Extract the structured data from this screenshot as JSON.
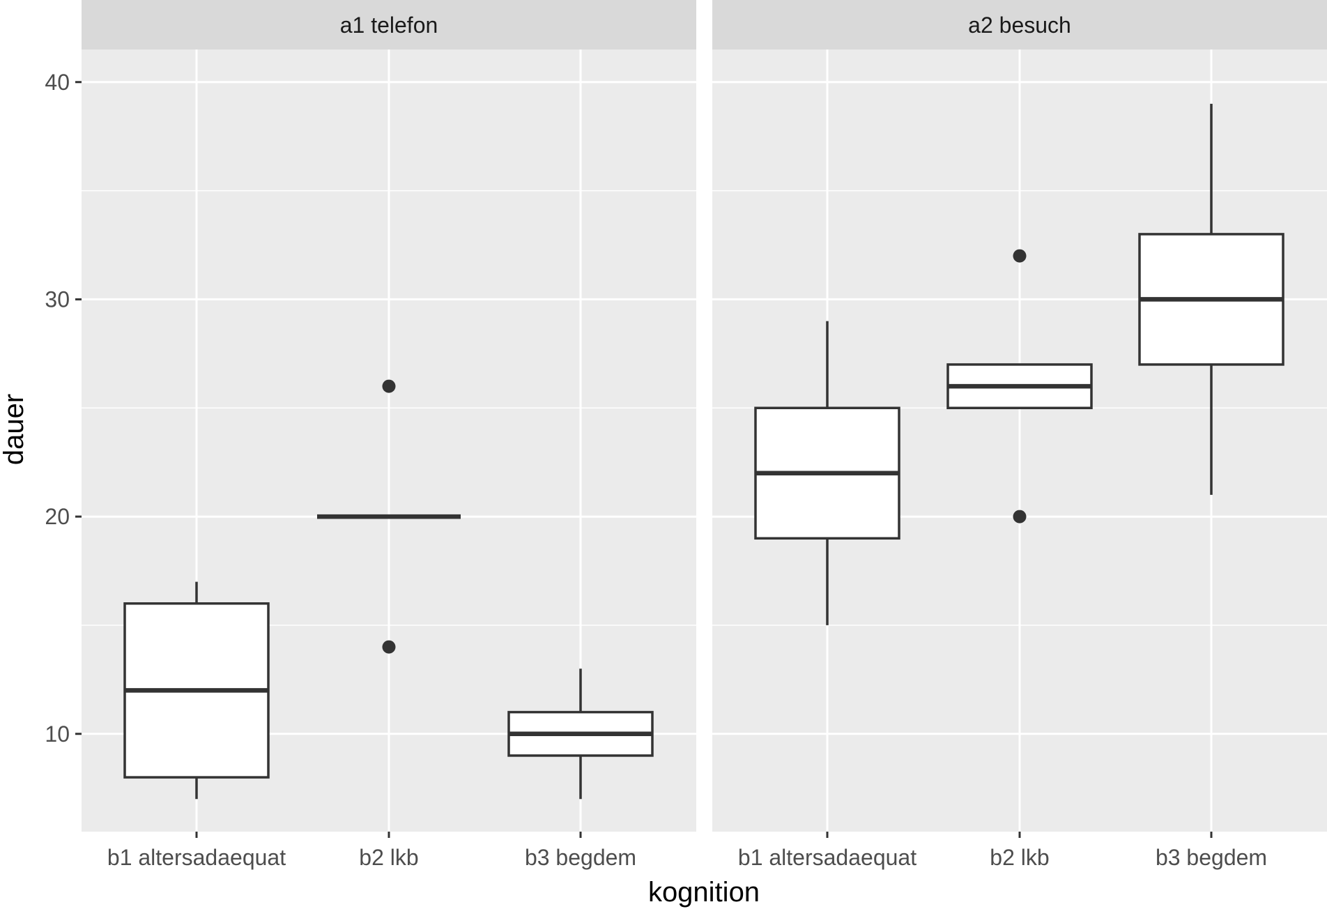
{
  "chart_data": {
    "type": "box",
    "xlabel": "kognition",
    "ylabel": "dauer",
    "ylim": [
      5.5,
      41.5
    ],
    "y_ticks": [
      10,
      20,
      30,
      40
    ],
    "y_minor": [
      15,
      25,
      35
    ],
    "categories": [
      "b1 altersadaequat",
      "b2 lkb",
      "b3 begdem"
    ],
    "grid": true,
    "facets": [
      {
        "label": "a1 telefon",
        "boxes": [
          {
            "category": "b1 altersadaequat",
            "lower_whisker": 7,
            "q1": 8,
            "median": 12,
            "q3": 16,
            "upper_whisker": 17,
            "outliers": []
          },
          {
            "category": "b2 lkb",
            "lower_whisker": 20,
            "q1": 20,
            "median": 20,
            "q3": 20,
            "upper_whisker": 20,
            "outliers": [
              26,
              14
            ]
          },
          {
            "category": "b3 begdem",
            "lower_whisker": 7,
            "q1": 9,
            "median": 10,
            "q3": 11,
            "upper_whisker": 13,
            "outliers": []
          }
        ]
      },
      {
        "label": "a2 besuch",
        "boxes": [
          {
            "category": "b1 altersadaequat",
            "lower_whisker": 15,
            "q1": 19,
            "median": 22,
            "q3": 25,
            "upper_whisker": 29,
            "outliers": []
          },
          {
            "category": "b2 lkb",
            "lower_whisker": 25,
            "q1": 25,
            "median": 26,
            "q3": 27,
            "upper_whisker": 27,
            "outliers": [
              32,
              20
            ]
          },
          {
            "category": "b3 begdem",
            "lower_whisker": 21,
            "q1": 27,
            "median": 30,
            "q3": 33,
            "upper_whisker": 39,
            "outliers": []
          }
        ]
      }
    ]
  }
}
